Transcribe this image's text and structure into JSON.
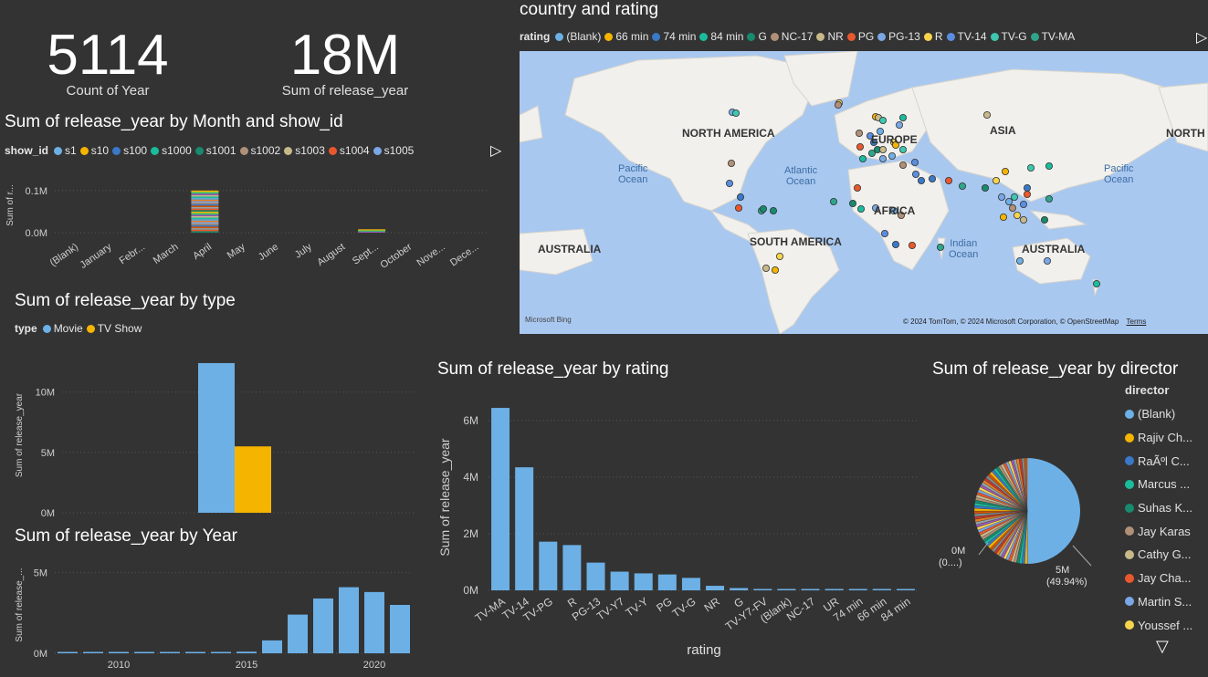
{
  "kpis": [
    {
      "value": "5114",
      "label": "Count of Year"
    },
    {
      "value": "18M",
      "label": "Sum of release_year"
    }
  ],
  "month_chart": {
    "title": "Sum of release_year by Month and show_id",
    "legend_title": "show_id",
    "legend": [
      {
        "name": "s1",
        "color": "#6cb0e6"
      },
      {
        "name": "s10",
        "color": "#f5b400"
      },
      {
        "name": "s100",
        "color": "#3a78c8"
      },
      {
        "name": "s1000",
        "color": "#1abc9c"
      },
      {
        "name": "s1001",
        "color": "#188a6e"
      },
      {
        "name": "s1002",
        "color": "#b09077"
      },
      {
        "name": "s1003",
        "color": "#c8b98a"
      },
      {
        "name": "s1004",
        "color": "#e8582c"
      },
      {
        "name": "s1005",
        "color": "#7aa7e6"
      }
    ],
    "ylabel": "Sum of r...",
    "yticks": [
      "0.1M",
      "0.0M"
    ]
  },
  "type_chart": {
    "title": "Sum of release_year by type",
    "legend_title": "type",
    "legend": [
      {
        "name": "Movie",
        "color": "#6cb0e6"
      },
      {
        "name": "TV Show",
        "color": "#f5b400"
      }
    ],
    "ylabel": "Sum of release_year",
    "yticks": [
      "10M",
      "5M",
      "0M"
    ]
  },
  "year_chart": {
    "title": "Sum of release_year by Year",
    "ylabel": "Sum of release_...",
    "yticks": [
      "5M",
      "0M"
    ],
    "xticks": [
      "2010",
      "2015",
      "2020"
    ]
  },
  "rating_chart": {
    "title": "Sum of release_year by rating",
    "ylabel": "Sum of release_year",
    "xlabel": "rating",
    "yticks": [
      "6M",
      "4M",
      "2M",
      "0M"
    ]
  },
  "map": {
    "title": "country and rating",
    "legend_title": "rating",
    "legend": [
      {
        "name": "(Blank)",
        "color": "#6cb0e6"
      },
      {
        "name": "66 min",
        "color": "#f5b400"
      },
      {
        "name": "74 min",
        "color": "#3a78c8"
      },
      {
        "name": "84 min",
        "color": "#1abc9c"
      },
      {
        "name": "G",
        "color": "#188a6e"
      },
      {
        "name": "NC-17",
        "color": "#b09077"
      },
      {
        "name": "NR",
        "color": "#c8b98a"
      },
      {
        "name": "PG",
        "color": "#e8582c"
      },
      {
        "name": "PG-13",
        "color": "#7aa7e6"
      },
      {
        "name": "R",
        "color": "#f7d44c"
      },
      {
        "name": "TV-14",
        "color": "#5b8ee0"
      },
      {
        "name": "TV-G",
        "color": "#3ec7b0"
      },
      {
        "name": "TV-MA",
        "color": "#2fa58b"
      }
    ],
    "labels": {
      "north_america": "NORTH AMERICA",
      "europe": "EUROPE",
      "asia": "ASIA",
      "north_right": "NORTH",
      "africa": "AFRICA",
      "south_america": "SOUTH AMERICA",
      "australia_left": "AUSTRALIA",
      "australia_right": "AUSTRALIA",
      "pacific_left": "Pacific\nOcean",
      "atlantic": "Atlantic\nOcean",
      "indian": "Indian\nOcean",
      "pacific_right": "Pacific\nOcean"
    },
    "bing": "Microsoft Bing",
    "copyright": "© 2024 TomTom, © 2024 Microsoft Corporation, © OpenStreetMap",
    "terms": "Terms"
  },
  "director_chart": {
    "title": "Sum of release_year by director",
    "legend_title": "director",
    "directors": [
      {
        "name": "(Blank)",
        "color": "#6cb0e6"
      },
      {
        "name": "Rajiv Ch...",
        "color": "#f5b400"
      },
      {
        "name": "RaÃºl C...",
        "color": "#3a78c8"
      },
      {
        "name": "Marcus ...",
        "color": "#1abc9c"
      },
      {
        "name": "Suhas K...",
        "color": "#188a6e"
      },
      {
        "name": "Jay Karas",
        "color": "#b09077"
      },
      {
        "name": "Cathy G...",
        "color": "#c8b98a"
      },
      {
        "name": "Jay Cha...",
        "color": "#e8582c"
      },
      {
        "name": "Martin S...",
        "color": "#7aa7e6"
      },
      {
        "name": "Youssef ...",
        "color": "#f7d44c"
      }
    ],
    "label_big": "5M",
    "label_big_pct": "(49.94%)",
    "label_small": "0M",
    "label_small_pct": "(0....)"
  },
  "chart_data": [
    {
      "type": "bar",
      "title": "Sum of release_year by Month and show_id",
      "xlabel": "",
      "ylabel": "Sum of r...",
      "categories": [
        "(Blank)",
        "January",
        "Febr...",
        "March",
        "April",
        "May",
        "June",
        "July",
        "August",
        "Sept...",
        "October",
        "Nove...",
        "Dece..."
      ],
      "values": [
        0,
        0,
        0,
        0,
        0.1,
        0,
        0,
        0,
        0,
        0.008,
        0,
        0,
        0
      ],
      "stacked": true,
      "ylim": [
        0,
        0.13
      ],
      "legend": "top"
    },
    {
      "type": "bar",
      "title": "Sum of release_year by type",
      "xlabel": "",
      "ylabel": "Sum of release_year",
      "series": [
        {
          "name": "Movie",
          "values": [
            12.4
          ]
        },
        {
          "name": "TV Show",
          "values": [
            5.5
          ]
        }
      ],
      "ylim": [
        0,
        13
      ],
      "legend": "top"
    },
    {
      "type": "bar",
      "title": "Sum of release_year by Year",
      "xlabel": "",
      "ylabel": "Sum of release_...",
      "x": [
        2008,
        2009,
        2010,
        2011,
        2012,
        2013,
        2014,
        2015,
        2016,
        2017,
        2018,
        2019,
        2020,
        2021
      ],
      "values": [
        0.004,
        0.004,
        0.004,
        0.004,
        0.004,
        0.004,
        0.008,
        0.1,
        0.8,
        2.4,
        3.4,
        4.1,
        3.8,
        3.0
      ],
      "ylim": [
        0,
        6
      ]
    },
    {
      "type": "bar",
      "title": "Sum of release_year by rating",
      "xlabel": "rating",
      "ylabel": "Sum of release_year",
      "categories": [
        "TV-MA",
        "TV-14",
        "TV-PG",
        "R",
        "PG-13",
        "TV-Y7",
        "TV-Y",
        "PG",
        "TV-G",
        "NR",
        "G",
        "TV-Y7-FV",
        "(Blank)",
        "NC-17",
        "UR",
        "74 min",
        "66 min",
        "84 min"
      ],
      "values": [
        6.45,
        4.35,
        1.72,
        1.6,
        0.98,
        0.66,
        0.6,
        0.56,
        0.44,
        0.16,
        0.08,
        0.01,
        0.004,
        0.004,
        0.004,
        0.002,
        0.002,
        0.002
      ],
      "ylim": [
        0,
        7
      ]
    },
    {
      "type": "pie",
      "title": "Sum of release_year by director",
      "categories": [
        "(Blank)",
        "others"
      ],
      "values": [
        49.94,
        50.06
      ]
    }
  ]
}
